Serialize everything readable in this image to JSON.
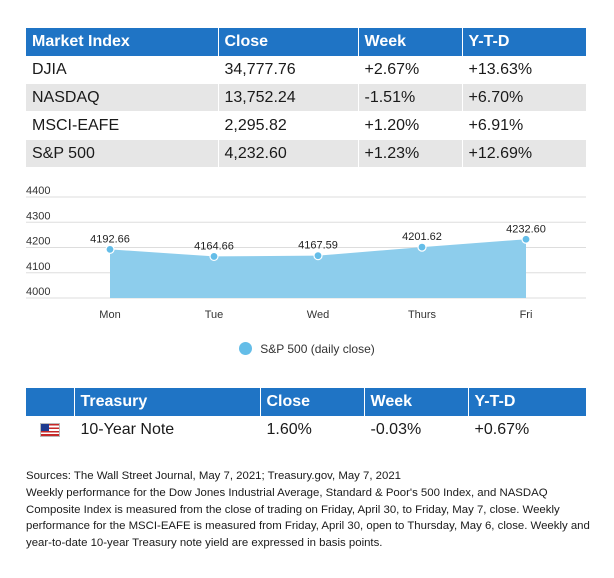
{
  "market_table": {
    "headers": [
      "Market Index",
      "Close",
      "Week",
      "Y-T-D"
    ],
    "rows": [
      [
        "DJIA",
        "34,777.76",
        "+2.67%",
        "+13.63%"
      ],
      [
        "NASDAQ",
        "13,752.24",
        "-1.51%",
        "+6.70%"
      ],
      [
        "MSCI-EAFE",
        "2,295.82",
        "+1.20%",
        "+6.91%"
      ],
      [
        "S&P 500",
        "4,232.60",
        "+1.23%",
        "+12.69%"
      ]
    ]
  },
  "chart_data": {
    "type": "area",
    "categories": [
      "Mon",
      "Tue",
      "Wed",
      "Thurs",
      "Fri"
    ],
    "series": [
      {
        "name": "S&P 500 (daily close)",
        "values": [
          4192.66,
          4164.66,
          4167.59,
          4201.62,
          4232.6
        ]
      }
    ],
    "data_labels": [
      "4192.66",
      "4164.66",
      "4167.59",
      "4201.62",
      "4232.60"
    ],
    "y_ticks": [
      "4400",
      "4300",
      "4200",
      "4100",
      "4000"
    ],
    "ylim": [
      4000,
      4400
    ],
    "grid": "horizontal",
    "legend": "bottom-center",
    "color": "#8dcdec",
    "marker_color": "#64bde8"
  },
  "treasury_table": {
    "headers": [
      "",
      "Treasury",
      "Close",
      "Week",
      "Y-T-D"
    ],
    "flag_icon": "us-flag-icon",
    "row": [
      "10-Year Note",
      "1.60%",
      "-0.03%",
      "+0.67%"
    ]
  },
  "notes": {
    "sources": "Sources: The Wall Street Journal, May 7, 2021; Treasury.gov, May 7, 2021",
    "lines": [
      "Weekly performance for the Dow Jones Industrial Average, Standard & Poor's 500 Index, and NASDAQ",
      "Composite Index is measured from the close of trading on Friday, April 30, to Friday, May 7, close. Weekly",
      "performance for the MSCI-EAFE is measured from Friday, April 30, open to Thursday, May 6, close. Weekly and",
      "year-to-date 10-year Treasury note yield are expressed in basis points."
    ]
  }
}
